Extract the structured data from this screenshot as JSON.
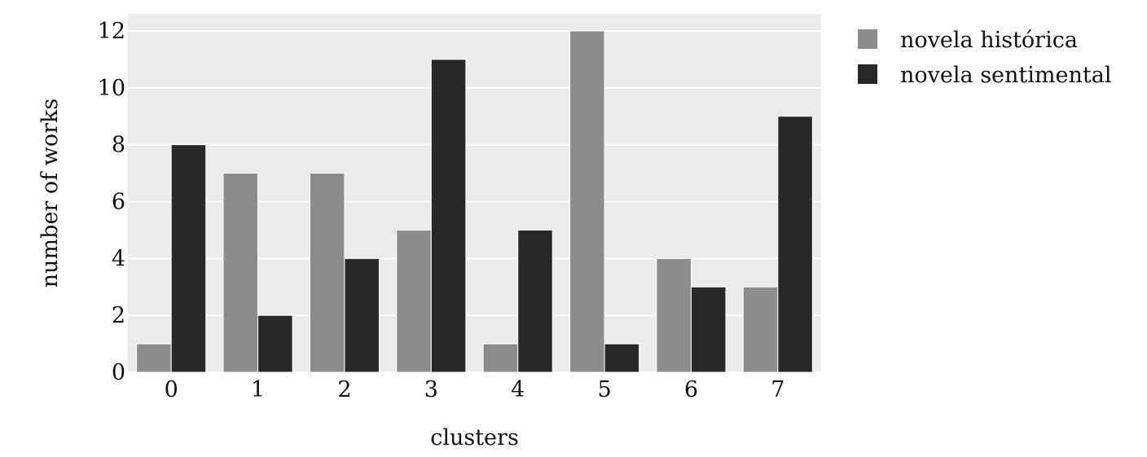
{
  "chart_data": {
    "type": "bar",
    "title": "",
    "xlabel": "clusters",
    "ylabel": "number of works",
    "categories": [
      "0",
      "1",
      "2",
      "3",
      "4",
      "5",
      "6",
      "7"
    ],
    "series": [
      {
        "name": "novela histórica",
        "color": "#8c8c8c",
        "values": [
          1,
          7,
          7,
          5,
          1,
          12,
          4,
          3
        ]
      },
      {
        "name": "novela sentimental",
        "color": "#282828",
        "values": [
          8,
          2,
          4,
          11,
          5,
          1,
          3,
          9
        ]
      }
    ],
    "ylim": [
      0,
      12.6
    ],
    "yticks": [
      0,
      2,
      4,
      6,
      8,
      10,
      12
    ],
    "grid": true,
    "legend_position": "outside-top-right",
    "plot_background": "#ebebeb",
    "grid_color": "#ffffff"
  }
}
